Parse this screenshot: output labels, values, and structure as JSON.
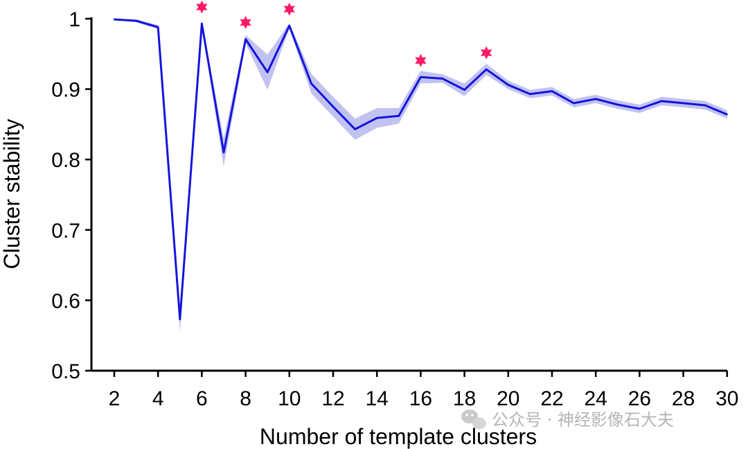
{
  "chart_data": {
    "type": "line",
    "xlabel": "Number of template clusters",
    "ylabel": "Cluster stability",
    "xlim": [
      2,
      30
    ],
    "ylim": [
      0.5,
      1.0
    ],
    "x_ticks": [
      2,
      4,
      6,
      8,
      10,
      12,
      14,
      16,
      18,
      20,
      22,
      24,
      26,
      28,
      30
    ],
    "y_ticks": [
      0.5,
      0.6,
      0.7,
      0.8,
      0.9,
      1.0
    ],
    "y_tick_labels": [
      "0.5",
      "0.6",
      "0.7",
      "0.8",
      "0.9",
      "1"
    ],
    "grid": false,
    "series": [
      {
        "color": "#1414dc",
        "band_color": "#8f8fe6",
        "x": [
          2,
          3,
          4,
          5,
          6,
          7,
          8,
          9,
          10,
          11,
          12,
          13,
          14,
          15,
          16,
          17,
          18,
          19,
          20,
          21,
          22,
          23,
          24,
          25,
          26,
          27,
          28,
          29,
          30
        ],
        "y": [
          0.999,
          0.997,
          0.988,
          0.573,
          0.993,
          0.81,
          0.971,
          0.924,
          0.99,
          0.908,
          0.875,
          0.843,
          0.859,
          0.862,
          0.917,
          0.915,
          0.899,
          0.928,
          0.906,
          0.893,
          0.897,
          0.88,
          0.886,
          0.878,
          0.872,
          0.883,
          0.88,
          0.877,
          0.864
        ],
        "band_halfwidth": [
          0.001,
          0.002,
          0.003,
          0.018,
          0.004,
          0.02,
          0.006,
          0.025,
          0.004,
          0.014,
          0.014,
          0.015,
          0.014,
          0.011,
          0.009,
          0.006,
          0.009,
          0.008,
          0.006,
          0.006,
          0.006,
          0.006,
          0.006,
          0.006,
          0.006,
          0.006,
          0.006,
          0.006,
          0.006
        ]
      }
    ],
    "markers": {
      "symbol": "star",
      "color": "#ff1a66",
      "x": [
        6,
        8,
        10,
        16,
        19
      ]
    }
  },
  "watermark": {
    "text": "公众号 · 神经影像石大夫",
    "icon": "wechat-icon"
  }
}
